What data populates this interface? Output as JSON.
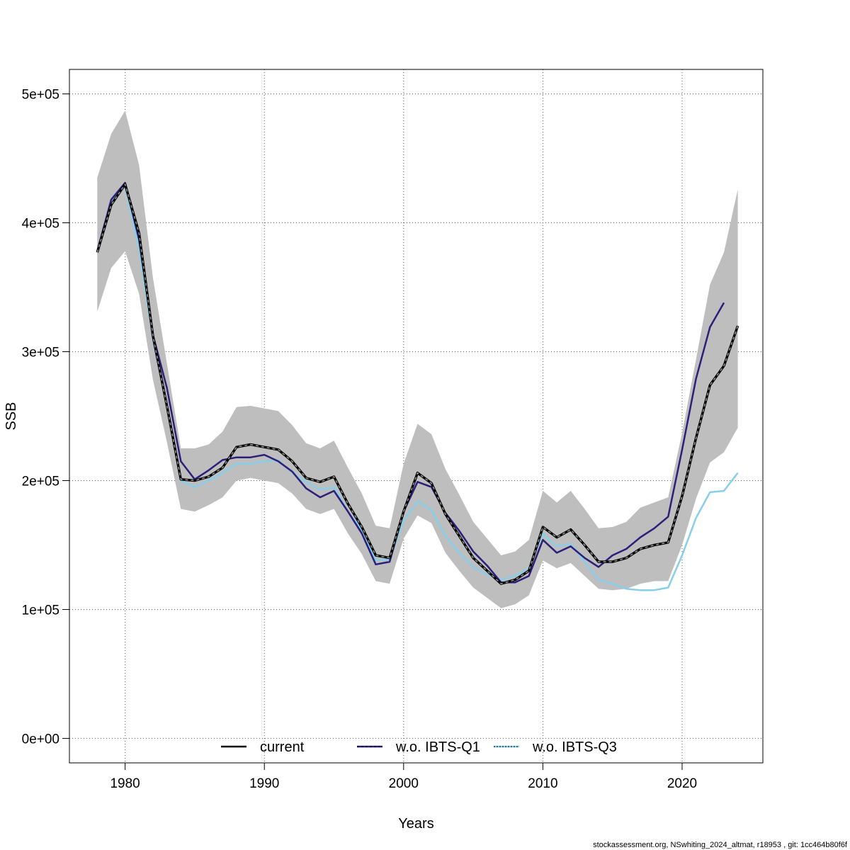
{
  "chart_data": {
    "type": "line",
    "title": "",
    "xlabel": "Years",
    "ylabel": "SSB",
    "xlim": [
      1976,
      2025.8
    ],
    "ylim": [
      -19000,
      519000
    ],
    "x_ticks": [
      1980,
      1990,
      2000,
      2010,
      2020
    ],
    "x_tick_labels": [
      "1980",
      "1990",
      "2000",
      "2010",
      "2020"
    ],
    "y_ticks": [
      0,
      100000,
      200000,
      300000,
      400000,
      500000
    ],
    "y_tick_labels": [
      "0e+00",
      "1e+05",
      "2e+05",
      "3e+05",
      "4e+05",
      "5e+05"
    ],
    "grid": true,
    "legend_position": "bottom",
    "legend": [
      {
        "label": "current",
        "color": "#000000",
        "style": "solid"
      },
      {
        "label": "w.o. IBTS-Q1",
        "color": "#2b1f7a",
        "style": "solid"
      },
      {
        "label": "w.o. IBTS-Q3",
        "color": "#87ceeb",
        "style": "solid"
      }
    ],
    "band": {
      "color": "#bebebe",
      "x": [
        1978,
        1979,
        1980,
        1981,
        1982,
        1983,
        1984,
        1985,
        1986,
        1987,
        1988,
        1989,
        1990,
        1991,
        1992,
        1993,
        1994,
        1995,
        1996,
        1997,
        1998,
        1999,
        2000,
        2001,
        2002,
        2003,
        2004,
        2005,
        2006,
        2007,
        2008,
        2009,
        2010,
        2011,
        2012,
        2013,
        2014,
        2015,
        2016,
        2017,
        2018,
        2019,
        2020,
        2021,
        2022,
        2023,
        2024
      ],
      "upper": [
        435000,
        469000,
        487000,
        445000,
        357000,
        291000,
        225000,
        225000,
        228000,
        238000,
        257000,
        258000,
        256000,
        254000,
        243000,
        229000,
        225000,
        231000,
        210000,
        190000,
        165000,
        163000,
        213000,
        244000,
        236000,
        209000,
        189000,
        168000,
        155000,
        142000,
        145000,
        154000,
        192000,
        183000,
        192000,
        178000,
        163000,
        164000,
        168000,
        179000,
        183000,
        187000,
        237000,
        294000,
        352000,
        377000,
        426000
      ],
      "lower": [
        331000,
        365000,
        378000,
        345000,
        278000,
        230000,
        178000,
        176000,
        181000,
        187000,
        200000,
        202000,
        200000,
        198000,
        190000,
        178000,
        174000,
        178000,
        159000,
        143000,
        122000,
        120000,
        155000,
        173000,
        167000,
        144000,
        130000,
        117000,
        109000,
        101000,
        104000,
        111000,
        138000,
        132000,
        136000,
        126000,
        116000,
        115000,
        116000,
        120000,
        122000,
        122000,
        150000,
        186000,
        214000,
        222000,
        241000
      ]
    },
    "series": [
      {
        "name": "current",
        "color": "#000000",
        "x": [
          1978,
          1979,
          1980,
          1981,
          1982,
          1983,
          1984,
          1985,
          1986,
          1987,
          1988,
          1989,
          1990,
          1991,
          1992,
          1993,
          1994,
          1995,
          1996,
          1997,
          1998,
          1999,
          2000,
          2001,
          2002,
          2003,
          2004,
          2005,
          2006,
          2007,
          2008,
          2009,
          2010,
          2011,
          2012,
          2013,
          2014,
          2015,
          2016,
          2017,
          2018,
          2019,
          2020,
          2021,
          2022,
          2023,
          2024
        ],
        "values": [
          377000,
          414000,
          430000,
          392000,
          312000,
          258000,
          201000,
          200000,
          203000,
          210000,
          226000,
          228000,
          226000,
          224000,
          215000,
          202000,
          199000,
          203000,
          182000,
          164000,
          142000,
          140000,
          176000,
          206000,
          198000,
          174000,
          157000,
          140000,
          130000,
          120000,
          123000,
          130000,
          164000,
          156000,
          162000,
          150000,
          137000,
          137000,
          140000,
          147000,
          150000,
          152000,
          188000,
          233000,
          274000,
          289000,
          320000
        ]
      },
      {
        "name": "w.o. IBTS-Q1",
        "color": "#2b1f7a",
        "x": [
          1978,
          1979,
          1980,
          1981,
          1982,
          1983,
          1984,
          1985,
          1986,
          1987,
          1988,
          1989,
          1990,
          1991,
          1992,
          1993,
          1994,
          1995,
          1996,
          1997,
          1998,
          1999,
          2000,
          2001,
          2002,
          2003,
          2004,
          2005,
          2006,
          2007,
          2008,
          2009,
          2010,
          2011,
          2012,
          2013,
          2014,
          2015,
          2016,
          2017,
          2018,
          2019,
          2020,
          2021,
          2022,
          2023
        ],
        "values": [
          378000,
          418000,
          431000,
          387000,
          313000,
          272000,
          215000,
          201000,
          208000,
          216000,
          218000,
          218000,
          220000,
          215000,
          207000,
          194000,
          187000,
          192000,
          176000,
          159000,
          135000,
          137000,
          176000,
          199000,
          195000,
          175000,
          161000,
          145000,
          134000,
          121000,
          121000,
          126000,
          154000,
          144000,
          149000,
          140000,
          133000,
          142000,
          147000,
          156000,
          163000,
          172000,
          224000,
          279000,
          319000,
          338000
        ]
      },
      {
        "name": "w.o. IBTS-Q3",
        "color": "#87ceeb",
        "x": [
          1978,
          1979,
          1980,
          1981,
          1982,
          1983,
          1984,
          1985,
          1986,
          1987,
          1988,
          1989,
          1990,
          1991,
          1992,
          1993,
          1994,
          1995,
          1996,
          1997,
          1998,
          1999,
          2000,
          2001,
          2002,
          2003,
          2004,
          2005,
          2006,
          2007,
          2008,
          2009,
          2010,
          2011,
          2012,
          2013,
          2014,
          2015,
          2016,
          2017,
          2018,
          2019,
          2020,
          2021,
          2022,
          2023,
          2024
        ],
        "values": [
          377000,
          417000,
          428000,
          380000,
          309000,
          257000,
          200000,
          195000,
          200000,
          206000,
          213000,
          213000,
          215000,
          216000,
          206000,
          199000,
          193000,
          195000,
          176000,
          162000,
          138000,
          139000,
          169000,
          184000,
          177000,
          157000,
          144000,
          133000,
          127000,
          123000,
          126000,
          132000,
          159000,
          149000,
          151000,
          137000,
          123000,
          120000,
          116000,
          115000,
          115000,
          117000,
          142000,
          171000,
          191000,
          192000,
          206000
        ]
      }
    ]
  },
  "footer": {
    "credit": "stockassessment.org, NSwhiting_2024_altmat, r18953 , git: 1cc464b80f6f"
  }
}
